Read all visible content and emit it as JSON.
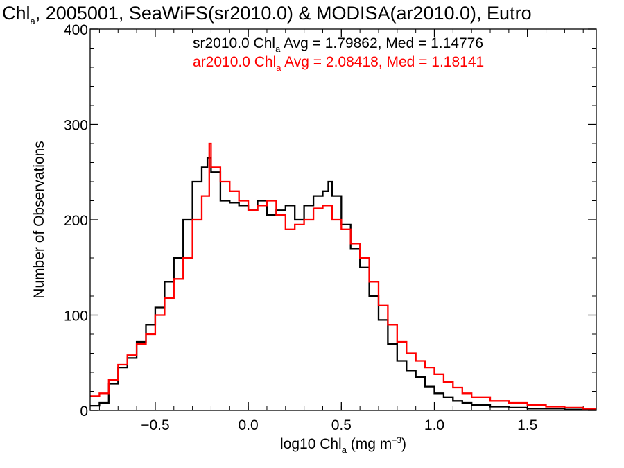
{
  "chart_data": {
    "type": "histogram-step",
    "title": {
      "pre": "Chl",
      "sub": "a",
      "post": ", 2005001, SeaWiFS(sr2010.0) & MODISA(ar2010.0), Eutro"
    },
    "xlabel": {
      "pre": "log10 Chl",
      "sub": "a",
      "mid": " (mg m",
      "sup": "−3",
      "post": ")"
    },
    "ylabel": "Number of Observations",
    "xlim": [
      -0.85,
      1.87
    ],
    "ylim": [
      0,
      400
    ],
    "xticks": [
      {
        "value": -0.5,
        "label": "−0.5"
      },
      {
        "value": 0.0,
        "label": "0.0"
      },
      {
        "value": 0.5,
        "label": "0.5"
      },
      {
        "value": 1.0,
        "label": "1.0"
      },
      {
        "value": 1.5,
        "label": "1.5"
      }
    ],
    "yticks": [
      {
        "value": 0,
        "label": "0"
      },
      {
        "value": 100,
        "label": "100"
      },
      {
        "value": 200,
        "label": "200"
      },
      {
        "value": 300,
        "label": "300"
      },
      {
        "value": 400,
        "label": "400"
      }
    ],
    "annotations": [
      {
        "color": "#000000",
        "pre": "sr2010.0 Chl",
        "sub": "a",
        "post": " Avg = 1.79862, Med = 1.14776"
      },
      {
        "color": "#ff0000",
        "pre": "ar2010.0 Chl",
        "sub": "a",
        "post": " Avg = 2.08418, Med = 1.18141"
      }
    ],
    "series": [
      {
        "color": "#000000",
        "points": [
          [
            -0.85,
            5
          ],
          [
            -0.8,
            8
          ],
          [
            -0.75,
            28
          ],
          [
            -0.7,
            45
          ],
          [
            -0.65,
            55
          ],
          [
            -0.6,
            72
          ],
          [
            -0.55,
            90
          ],
          [
            -0.5,
            108
          ],
          [
            -0.45,
            135
          ],
          [
            -0.4,
            160
          ],
          [
            -0.35,
            200
          ],
          [
            -0.3,
            240
          ],
          [
            -0.25,
            255
          ],
          [
            -0.22,
            265
          ],
          [
            -0.2,
            250
          ],
          [
            -0.15,
            220
          ],
          [
            -0.1,
            218
          ],
          [
            -0.05,
            215
          ],
          [
            0.0,
            210
          ],
          [
            0.05,
            220
          ],
          [
            0.1,
            205
          ],
          [
            0.15,
            210
          ],
          [
            0.2,
            215
          ],
          [
            0.25,
            200
          ],
          [
            0.3,
            215
          ],
          [
            0.35,
            225
          ],
          [
            0.4,
            230
          ],
          [
            0.43,
            240
          ],
          [
            0.45,
            225
          ],
          [
            0.5,
            195
          ],
          [
            0.55,
            170
          ],
          [
            0.6,
            150
          ],
          [
            0.65,
            120
          ],
          [
            0.7,
            95
          ],
          [
            0.75,
            70
          ],
          [
            0.8,
            52
          ],
          [
            0.85,
            42
          ],
          [
            0.9,
            35
          ],
          [
            0.95,
            25
          ],
          [
            1.0,
            18
          ],
          [
            1.05,
            14
          ],
          [
            1.1,
            10
          ],
          [
            1.15,
            8
          ],
          [
            1.2,
            6
          ],
          [
            1.3,
            4
          ],
          [
            1.4,
            3
          ],
          [
            1.5,
            2
          ],
          [
            1.6,
            2
          ],
          [
            1.7,
            1
          ],
          [
            1.87,
            1
          ]
        ]
      },
      {
        "color": "#ff0000",
        "points": [
          [
            -0.85,
            15
          ],
          [
            -0.8,
            18
          ],
          [
            -0.75,
            32
          ],
          [
            -0.7,
            48
          ],
          [
            -0.65,
            58
          ],
          [
            -0.6,
            70
          ],
          [
            -0.55,
            80
          ],
          [
            -0.5,
            100
          ],
          [
            -0.45,
            118
          ],
          [
            -0.4,
            138
          ],
          [
            -0.35,
            160
          ],
          [
            -0.3,
            200
          ],
          [
            -0.25,
            225
          ],
          [
            -0.21,
            280
          ],
          [
            -0.2,
            255
          ],
          [
            -0.15,
            240
          ],
          [
            -0.1,
            230
          ],
          [
            -0.05,
            220
          ],
          [
            0.0,
            210
          ],
          [
            0.05,
            215
          ],
          [
            0.1,
            220
          ],
          [
            0.15,
            205
          ],
          [
            0.2,
            190
          ],
          [
            0.25,
            195
          ],
          [
            0.3,
            200
          ],
          [
            0.35,
            212
          ],
          [
            0.4,
            215
          ],
          [
            0.45,
            200
          ],
          [
            0.5,
            190
          ],
          [
            0.55,
            175
          ],
          [
            0.6,
            160
          ],
          [
            0.65,
            135
          ],
          [
            0.7,
            110
          ],
          [
            0.75,
            90
          ],
          [
            0.8,
            72
          ],
          [
            0.85,
            60
          ],
          [
            0.9,
            52
          ],
          [
            0.95,
            45
          ],
          [
            1.0,
            38
          ],
          [
            1.05,
            30
          ],
          [
            1.1,
            24
          ],
          [
            1.15,
            18
          ],
          [
            1.2,
            14
          ],
          [
            1.3,
            10
          ],
          [
            1.4,
            8
          ],
          [
            1.5,
            6
          ],
          [
            1.6,
            4
          ],
          [
            1.7,
            3
          ],
          [
            1.8,
            2
          ],
          [
            1.87,
            2
          ]
        ]
      }
    ]
  }
}
